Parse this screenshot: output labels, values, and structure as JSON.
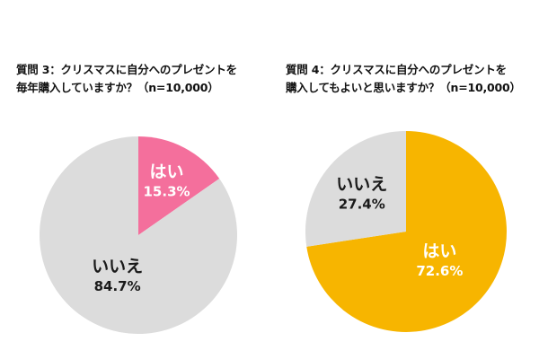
{
  "chart_data": [
    {
      "type": "pie",
      "title_lines": [
        "質問 3：クリスマスに自分へのプレゼントを",
        "毎年購入していますか？（n=10,000）"
      ],
      "categories": [
        "はい",
        "いいえ"
      ],
      "values": [
        15.3,
        84.7
      ],
      "value_labels": [
        "15.3%",
        "84.7%"
      ],
      "colors": [
        "#f46f9c",
        "#dcdcdc"
      ],
      "start_angle_deg": 0,
      "legend": "none"
    },
    {
      "type": "pie",
      "title_lines": [
        "質問 4：クリスマスに自分へのプレゼントを",
        "購入してもよいと思いますか？（n=10,000）"
      ],
      "categories": [
        "はい",
        "いいえ"
      ],
      "values": [
        72.6,
        27.4
      ],
      "value_labels": [
        "72.6%",
        "27.4%"
      ],
      "colors": [
        "#f7b500",
        "#dcdcdc"
      ],
      "start_angle_deg": 0,
      "legend": "none"
    }
  ]
}
